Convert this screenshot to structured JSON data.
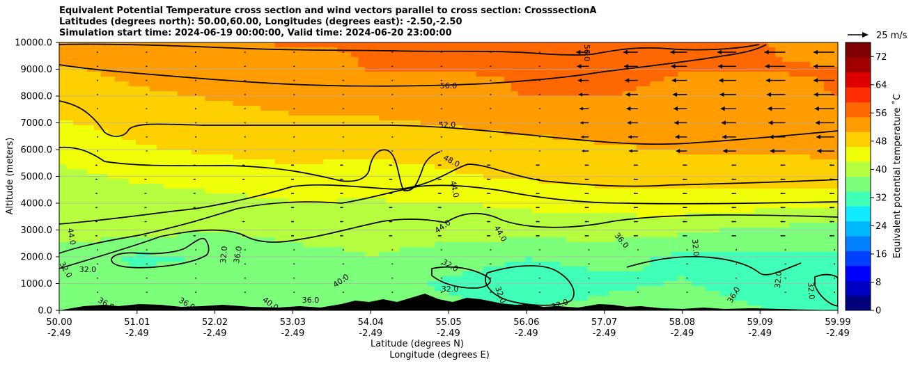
{
  "chart_data": {
    "type": "heatmap",
    "title_lines": [
      "Equivalent Potential Temperature cross section and wind vectors parallel to cross section: CrosssectionA",
      "Latitudes (degrees north): 50.00,60.00, Longitudes (degrees east): -2.50,-2.50",
      "Simulation start time: 2024-06-19 00:00:00, Valid time: 2024-06-20 23:00:00"
    ],
    "ylabel": "Altitude (meters)",
    "xlabel_lat": "Latitude (degrees N)",
    "xlabel_lon": "Longitude (degrees E)",
    "xlim": [
      50.0,
      59.99
    ],
    "ylim": [
      0,
      10000
    ],
    "x_ticks": [
      {
        "lat": "50.00",
        "lon": "-2.49"
      },
      {
        "lat": "51.01",
        "lon": "-2.49"
      },
      {
        "lat": "52.02",
        "lon": "-2.49"
      },
      {
        "lat": "53.03",
        "lon": "-2.49"
      },
      {
        "lat": "54.04",
        "lon": "-2.49"
      },
      {
        "lat": "55.05",
        "lon": "-2.49"
      },
      {
        "lat": "56.06",
        "lon": "-2.49"
      },
      {
        "lat": "57.07",
        "lon": "-2.49"
      },
      {
        "lat": "58.08",
        "lon": "-2.49"
      },
      {
        "lat": "59.09",
        "lon": "-2.49"
      },
      {
        "lat": "59.99",
        "lon": "-2.49"
      }
    ],
    "y_ticks": [
      "0.0",
      "1000.0",
      "2000.0",
      "3000.0",
      "4000.0",
      "5000.0",
      "6000.0",
      "7000.0",
      "8000.0",
      "9000.0",
      "10000.0"
    ],
    "y_tick_values": [
      0,
      1000,
      2000,
      3000,
      4000,
      5000,
      6000,
      7000,
      8000,
      9000,
      10000
    ],
    "grid": "horizontal",
    "colorbar": {
      "label": "Equivalent potential temperature ˚C",
      "min": 0,
      "max": 76,
      "tick_values": [
        0,
        8,
        16,
        24,
        32,
        40,
        48,
        56,
        64,
        72
      ],
      "tick_labels": [
        "0",
        "8",
        "16",
        "24",
        "32",
        "40",
        "48",
        "56",
        "64",
        "72"
      ],
      "colors": [
        "#00007f",
        "#0000c4",
        "#0000ff",
        "#0040ff",
        "#0080ff",
        "#00b8ff",
        "#10eaff",
        "#40ffb6",
        "#7cff7a",
        "#b6ff40",
        "#f0ff08",
        "#ffd000",
        "#ff9c00",
        "#ff6800",
        "#ff2e00",
        "#e00000",
        "#a00000",
        "#7f0000"
      ]
    },
    "wind_key": {
      "label": "25 m/s",
      "speed": 25
    },
    "contours": [
      {
        "label": "56.0",
        "level": 56
      },
      {
        "label": "52.0",
        "level": 52
      },
      {
        "label": "48.0",
        "level": 48
      },
      {
        "label": "44.0",
        "level": 44
      },
      {
        "label": "40.0",
        "level": 40
      },
      {
        "label": "36.0",
        "level": 36
      },
      {
        "label": "32.0",
        "level": 32
      }
    ],
    "field_rows": [
      {
        "alt": 10000,
        "values": [
          54,
          55,
          55,
          55,
          55,
          55,
          55,
          56,
          55,
          55,
          54
        ]
      },
      {
        "alt": 9000,
        "values": [
          50,
          52,
          53,
          54,
          55,
          55,
          55,
          56,
          55,
          55,
          55
        ]
      },
      {
        "alt": 8000,
        "values": [
          48,
          50,
          51,
          52,
          53,
          54,
          55,
          55,
          54,
          54,
          55
        ]
      },
      {
        "alt": 7000,
        "values": [
          46,
          48,
          49,
          50,
          50,
          51,
          52,
          53,
          53,
          53,
          54
        ]
      },
      {
        "alt": 6000,
        "values": [
          44,
          46,
          47,
          48,
          48,
          48,
          49,
          50,
          51,
          51,
          52
        ]
      },
      {
        "alt": 5000,
        "values": [
          41,
          43,
          44,
          45,
          44,
          46,
          47,
          48,
          48,
          48,
          48
        ]
      },
      {
        "alt": 4000,
        "values": [
          40,
          40,
          41,
          42,
          42,
          42,
          43,
          44,
          45,
          44,
          44
        ]
      },
      {
        "alt": 3000,
        "values": [
          40,
          40,
          38,
          40,
          40,
          40,
          40,
          40,
          39,
          37,
          36
        ]
      },
      {
        "alt": 2000,
        "values": [
          36,
          33,
          34,
          36,
          38,
          36,
          34,
          35,
          33,
          33,
          33
        ]
      },
      {
        "alt": 1000,
        "values": [
          37,
          35,
          36,
          37,
          36,
          33,
          31,
          33,
          34,
          32,
          31
        ]
      },
      {
        "alt": 0,
        "values": [
          37,
          37,
          38,
          37,
          36,
          35,
          34,
          35,
          36,
          34,
          30
        ]
      }
    ]
  }
}
